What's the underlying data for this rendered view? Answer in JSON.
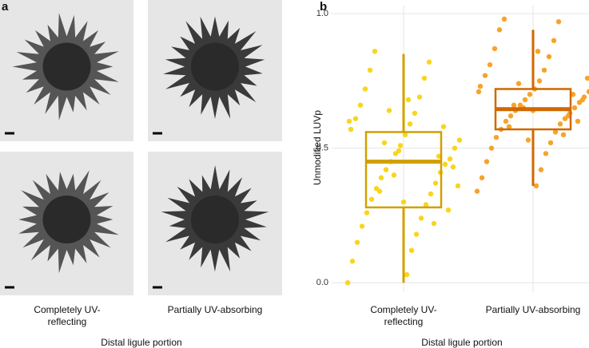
{
  "panel_a": {
    "label": "a",
    "columns": [
      "Completely UV-reflecting",
      "Partially UV-absorbing"
    ],
    "xlabel": "Distal ligule portion"
  },
  "chart_data": {
    "type": "box",
    "panel_label": "b",
    "ylabel": "Unmodified LUVp",
    "xlabel": "Distal ligule portion",
    "categories": [
      "Completely UV-reflecting",
      "Partially UV-absorbing"
    ],
    "ylim": [
      -0.035,
      1.03
    ],
    "yticks": [
      {
        "value": 0,
        "label": "0.0"
      },
      {
        "value": 0.5,
        "label": "0.5"
      },
      {
        "value": 1,
        "label": "1.0"
      }
    ],
    "grid": true,
    "point_colors": [
      "#f9d51c",
      "#f7a32b"
    ],
    "box_colors": [
      "#d1a000",
      "#d06800"
    ],
    "boxes": [
      {
        "low": 0.0,
        "q1": 0.28,
        "median": 0.45,
        "q3": 0.56,
        "high": 0.85
      },
      {
        "low": 0.36,
        "q1": 0.57,
        "median": 0.645,
        "q3": 0.72,
        "high": 0.94
      }
    ],
    "points": [
      [
        0.0,
        0.03,
        0.08,
        0.12,
        0.15,
        0.18,
        0.21,
        0.24,
        0.26,
        0.29,
        0.31,
        0.33,
        0.35,
        0.37,
        0.39,
        0.41,
        0.42,
        0.44,
        0.45,
        0.46,
        0.48,
        0.5,
        0.51,
        0.53,
        0.55,
        0.57,
        0.59,
        0.61,
        0.63,
        0.66,
        0.69,
        0.72,
        0.76,
        0.79,
        0.82,
        0.86,
        0.22,
        0.34,
        0.47,
        0.52,
        0.58,
        0.64,
        0.27,
        0.4,
        0.43,
        0.49,
        0.36,
        0.3,
        0.6,
        0.68
      ],
      [
        0.34,
        0.36,
        0.39,
        0.42,
        0.45,
        0.48,
        0.5,
        0.52,
        0.54,
        0.56,
        0.57,
        0.59,
        0.6,
        0.61,
        0.62,
        0.63,
        0.64,
        0.65,
        0.66,
        0.67,
        0.68,
        0.69,
        0.7,
        0.71,
        0.72,
        0.73,
        0.75,
        0.77,
        0.79,
        0.81,
        0.84,
        0.87,
        0.9,
        0.94,
        0.97,
        0.98,
        0.55,
        0.58,
        0.62,
        0.66,
        0.7,
        0.74,
        0.6,
        0.65,
        0.68,
        0.53,
        0.76,
        0.64,
        0.71,
        0.86
      ]
    ]
  }
}
